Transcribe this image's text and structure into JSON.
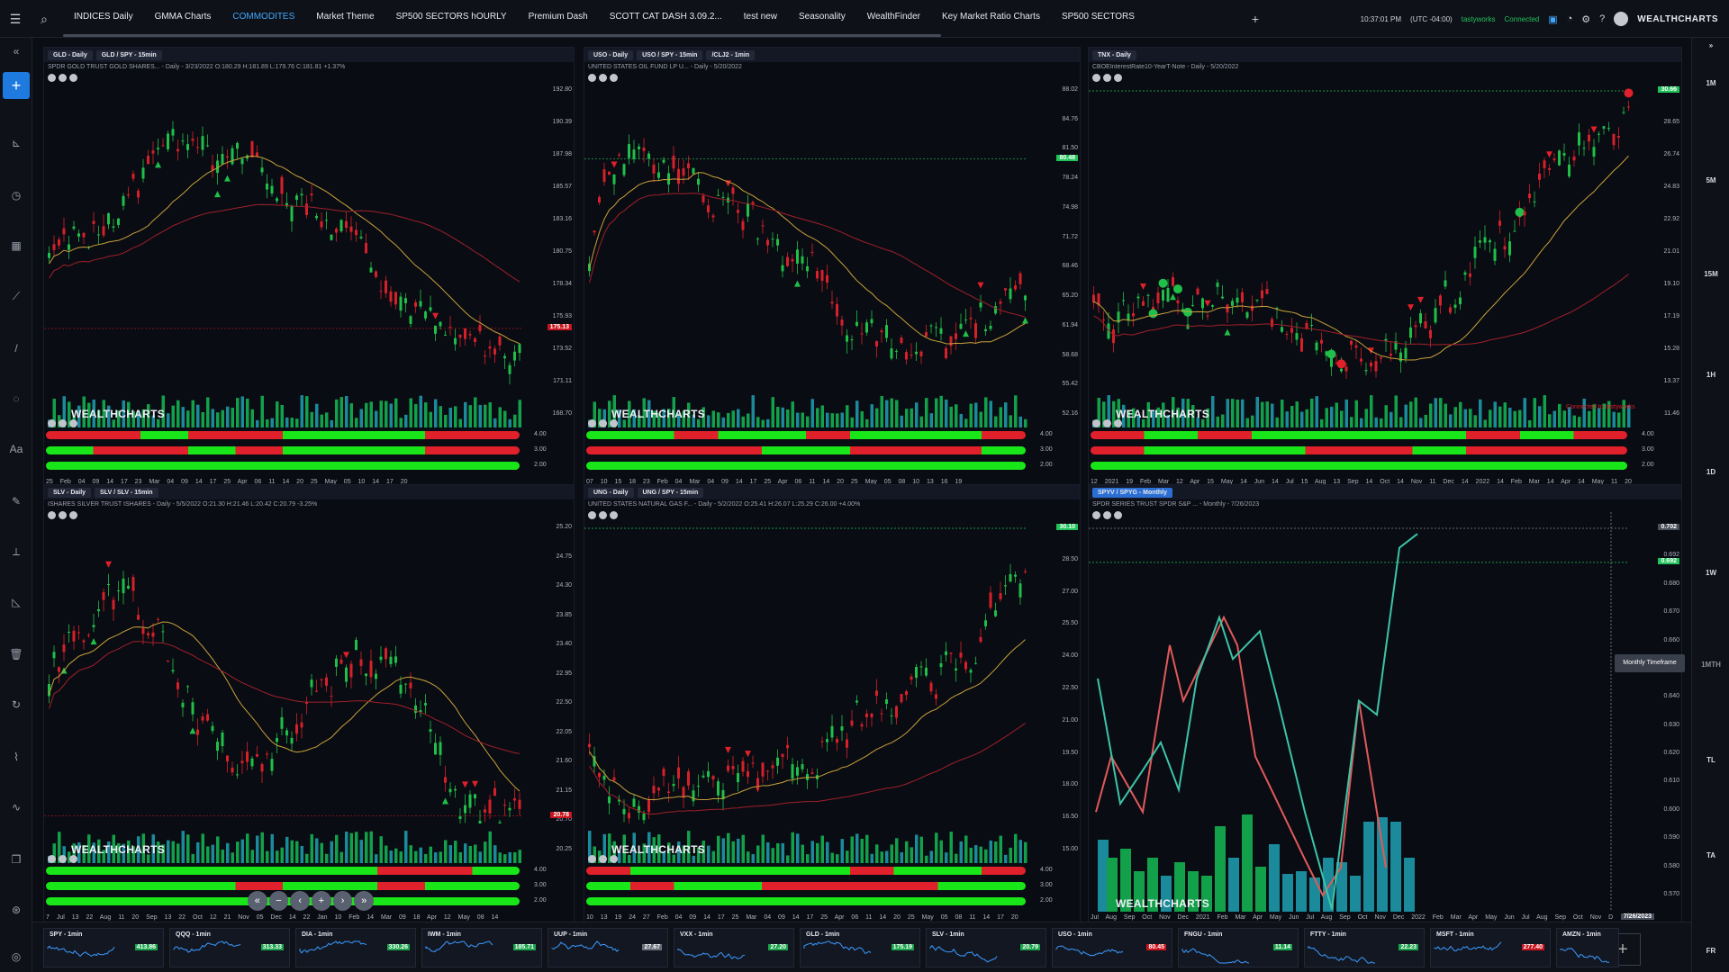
{
  "topbar": {
    "tabs": [
      "INDICES Daily",
      "GMMA Charts",
      "COMMODITES",
      "Market Theme",
      "SP500 SECTORS hOURLY",
      "Premium Dash",
      "SCOTT CAT DASH 3.09.2...",
      "test new",
      "Seasonality",
      "WealthFinder",
      "Key Market Ratio Charts",
      "SP500 SECTORS"
    ],
    "active_tab": "COMMODITES",
    "time": "10:37:01 PM",
    "timezone": "(UTC -04:00)",
    "broker": "tastyworks",
    "status": "Connected",
    "brand": "WEALTHCHARTS"
  },
  "right_timeframes": [
    "1M",
    "5M",
    "15M",
    "1H",
    "1D",
    "1W",
    "1MTH",
    "TL",
    "TA",
    "FR"
  ],
  "watermark": "WEALTHCHARTS",
  "tooltip": "Monthly Timeframe",
  "panels": [
    {
      "tabs": [
        "GLD - Daily",
        "GLD / SPY - 15min"
      ],
      "desc": "SPDR GOLD TRUST GOLD SHARES... - Daily - 3/23/2022 O:180.29 H:181.89 L:179.76 C:181.81 +1.37%",
      "yticks": [
        "192.80",
        "190.39",
        "187.98",
        "185.57",
        "183.16",
        "180.75",
        "178.34",
        "175.93",
        "173.52",
        "171.11",
        "168.70"
      ],
      "price": "175.13",
      "price_color": "#c8141e",
      "xticks": "25 Feb 04 09 14 17 23 Mar 04 09 14 17 25 Apr 06 11 14 20 25 May 05 10 14 17 20",
      "ind": [
        "4.00",
        "3.00",
        "2.00"
      ],
      "chart_data": {
        "type": "candlestick",
        "last": 175.13,
        "ylim": [
          168.7,
          192.8
        ]
      }
    },
    {
      "tabs": [
        "USO - Daily",
        "USO / SPY - 15min",
        "/CLJ2 - 1min"
      ],
      "desc": "UNITED STATES OIL FUND LP U... - Daily - 5/20/2022",
      "yticks": [
        "88.02",
        "84.76",
        "81.50",
        "78.24",
        "74.98",
        "71.72",
        "68.46",
        "65.20",
        "61.94",
        "58.68",
        "55.42",
        "52.16"
      ],
      "price": "80.48",
      "price_color": "#20c25a",
      "xticks": "07 10 15 18 23 Feb 04 Mar 04 09 14 17 25 Apr 06 11 14 20 25 May 05 08 10 13 16 19",
      "ind": [
        "4.00",
        "3.00",
        "2.00"
      ],
      "chart_data": {
        "type": "candlestick",
        "last": 80.48,
        "ylim": [
          52.16,
          88.02
        ]
      }
    },
    {
      "tabs": [
        "TNX - Daily"
      ],
      "desc": "CBOEInterestRate10-YearT-Note - Daily - 5/20/2022",
      "yticks": [
        "30.66",
        "28.65",
        "26.74",
        "24.83",
        "22.92",
        "21.01",
        "19.10",
        "17.19",
        "15.28",
        "13.37",
        "11.46"
      ],
      "price": "30.66",
      "price_color": "#20c25a",
      "xticks": "12 2021 19 Feb Mar 12 Apr 15 May 14 Jun 14 Jul 15 Aug 13 Sep 14 Oct 14 Nov 11 Dec 14 2022 14 Feb Mar 14 Apr 14 May 11 20",
      "ind": [
        "4.00",
        "3.00",
        "2.00"
      ],
      "note": "Connected to tastyworks",
      "chart_data": {
        "type": "candlestick",
        "last": 30.66,
        "ylim": [
          11.46,
          30.66
        ]
      }
    },
    {
      "tabs": [
        "SLV - Daily",
        "SLV / SLV - 15min"
      ],
      "desc": "ISHARES SILVER TRUST ISHARES - Daily - 5/5/2022 O:21.30 H:21.46 L:20.42 C:20.79 -3.25%",
      "yticks": [
        "25.20",
        "24.75",
        "24.30",
        "23.85",
        "23.40",
        "22.95",
        "22.50",
        "22.05",
        "21.60",
        "21.15",
        "20.70",
        "20.25"
      ],
      "price": "20.78",
      "price_color": "#c8141e",
      "xticks": "7 Jul 13 22 Aug 11 20 Sep 13 22 Oct 12 21 Nov 05 Dec 14 22 Jan 10 Feb 14 Mar 09 18 Apr 12 May 08 14",
      "ind": [
        "4.00",
        "3.00",
        "2.00"
      ],
      "chart_data": {
        "type": "candlestick",
        "last": 20.78,
        "ylim": [
          20.25,
          25.2
        ]
      }
    },
    {
      "tabs": [
        "UNG - Daily",
        "UNG / SPY - 15min"
      ],
      "desc": "UNITED STATES NATURAL GAS F... - Daily - 5/2/2022 O:25.41 H:26.07 L:25.29 C:26.00 +4.00%",
      "yticks": [
        "30.10",
        "28.50",
        "27.00",
        "25.50",
        "24.00",
        "22.50",
        "21.00",
        "19.50",
        "18.00",
        "16.50",
        "15.00"
      ],
      "price": "30.10",
      "price_color": "#20c25a",
      "xticks": "10 13 19 24 27 Feb 04 09 14 17 25 Mar 04 09 14 17 25 Apr 06 11 14 20 25 May 05 08 11 14 17 20",
      "ind": [
        "4.00",
        "3.00",
        "2.00"
      ],
      "chart_data": {
        "type": "candlestick",
        "last": 30.1,
        "ylim": [
          15.0,
          30.1
        ]
      }
    },
    {
      "tabs": [
        "SPYV / SPYG - Monthly"
      ],
      "desc": "SPDR SERIES TRUST SPDR S&P ... - Monthly - 7/26/2023",
      "yticks": [
        "0.702",
        "0.692",
        "0.680",
        "0.670",
        "0.660",
        "0.650",
        "0.640",
        "0.630",
        "0.620",
        "0.610",
        "0.600",
        "0.590",
        "0.580",
        "0.570"
      ],
      "price": "0.692",
      "price_color": "#20c25a",
      "crosshair": "0.702",
      "xticks": "Jul Aug Sep Oct Nov Dec 2021 Feb Mar Apr May Jun Jul Aug Sep Oct Nov Dec 2022 Feb Mar Apr May Jun Jul Aug Sep Oct Nov Dec 2023 Feb Mar Apr May",
      "xlast": "7/26/2023",
      "chart_data": {
        "type": "line",
        "last": 0.692,
        "ylim": [
          0.565,
          0.705
        ]
      }
    }
  ],
  "tickers": [
    {
      "name": "SPY - 1min",
      "price": "413.86",
      "color": "#1aa34a"
    },
    {
      "name": "QQQ - 1min",
      "price": "313.33",
      "color": "#1aa34a"
    },
    {
      "name": "DIA - 1min",
      "price": "330.26",
      "color": "#1aa34a"
    },
    {
      "name": "IWM - 1min",
      "price": "185.71",
      "color": "#1aa34a"
    },
    {
      "name": "UUP - 1min",
      "price": "27.67",
      "color": "#6b6f7a"
    },
    {
      "name": "VXX - 1min",
      "price": "27.20",
      "color": "#1aa34a"
    },
    {
      "name": "GLD - 1min",
      "price": "175.19",
      "color": "#1aa34a"
    },
    {
      "name": "SLV - 1min",
      "price": "20.79",
      "color": "#1aa34a"
    },
    {
      "name": "USO - 1min",
      "price": "80.45",
      "color": "#c8141e"
    },
    {
      "name": "FNGU - 1min",
      "price": "11.14",
      "color": "#1aa34a"
    },
    {
      "name": "FTTY - 1min",
      "price": "22.23",
      "color": "#1aa34a"
    },
    {
      "name": "MSFT - 1min",
      "price": "277.40",
      "color": "#c8141e"
    },
    {
      "name": "AMZN - 1min",
      "price": "",
      "color": "#1aa34a"
    }
  ]
}
